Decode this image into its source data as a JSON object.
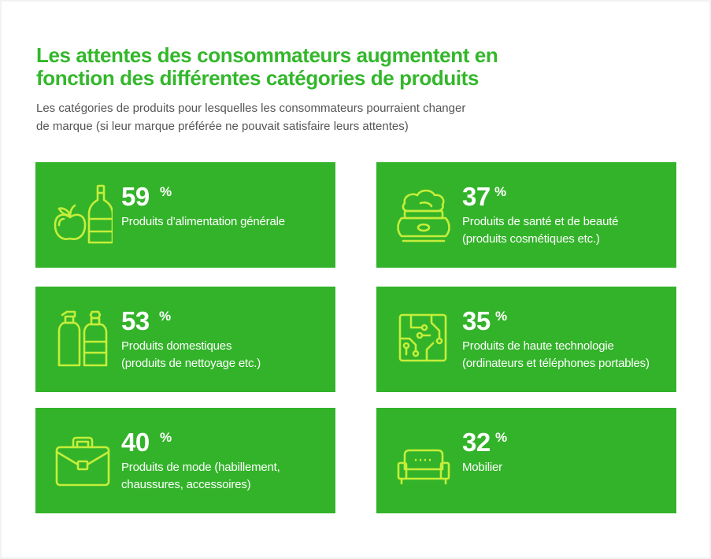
{
  "title_lines": [
    "Les attentes des consommateurs augmentent en",
    "fonction des différentes catégories de produits"
  ],
  "subtitle_lines": [
    "Les catégories de produits pour lesquelles les consommateurs pourraient changer",
    "de marque (si leur marque préférée ne pouvait satisfaire leurs attentes)"
  ],
  "colors": {
    "title": "#33b72b",
    "card": "#33b32a",
    "icon": "#c5ee3a",
    "text": "#ffffff"
  },
  "chart_data": {
    "type": "table",
    "unit": "%",
    "categories": [
      {
        "value": 59,
        "label_lines": [
          "Produits d’alimentation générale"
        ],
        "icon": "apple-bottle-icon"
      },
      {
        "value": 37,
        "label_lines": [
          "Produits de santé et de beauté",
          "(produits cosmétiques etc.)"
        ],
        "icon": "cream-jar-icon"
      },
      {
        "value": 53,
        "label_lines": [
          "Produits domestiques",
          "(produits de nettoyage etc.)"
        ],
        "icon": "spray-bottles-icon"
      },
      {
        "value": 35,
        "label_lines": [
          "Produits de haute technologie",
          "(ordinateurs et téléphones portables)"
        ],
        "icon": "circuit-board-icon"
      },
      {
        "value": 40,
        "label_lines": [
          "Produits de mode (habillement,",
          "chaussures, accessoires)"
        ],
        "icon": "briefcase-icon"
      },
      {
        "value": 32,
        "label_lines": [
          "Mobilier"
        ],
        "icon": "sofa-icon"
      }
    ]
  }
}
